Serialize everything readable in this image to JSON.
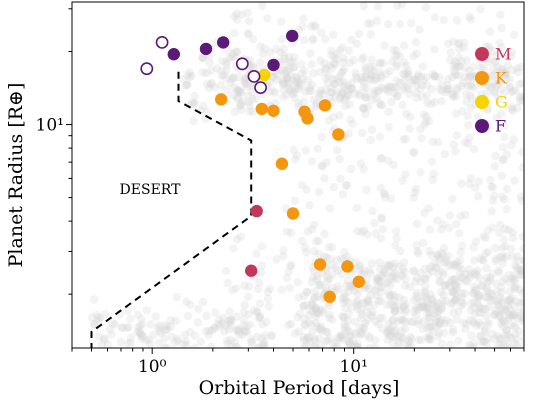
{
  "chart_data": {
    "type": "scatter",
    "xlabel": "Orbital Period [days]",
    "ylabel": "Planet Radius [R⊕]",
    "x_scale": "log",
    "y_scale": "log",
    "xlim": [
      0.4,
      70
    ],
    "ylim": [
      1.2,
      32
    ],
    "x_ticks": [
      {
        "value": 1,
        "label": "10⁰"
      },
      {
        "value": 10,
        "label": "10¹"
      }
    ],
    "y_ticks": [
      {
        "value": 10,
        "label": "10¹"
      }
    ],
    "grid": false,
    "legend": {
      "placement": "top-right",
      "entries": [
        {
          "label": "M",
          "color": "#c2385a"
        },
        {
          "label": "K",
          "color": "#f5960f"
        },
        {
          "label": "G",
          "color": "#f5d400"
        },
        {
          "label": "F",
          "color": "#5c1a78"
        }
      ]
    },
    "annotation": "DESERT",
    "background_color": "#d3d3d3",
    "desert_boundary": [
      [
        1.35,
        16.5
      ],
      [
        1.35,
        12.5
      ],
      [
        3.1,
        8.6
      ],
      [
        3.1,
        4.2
      ],
      [
        0.5,
        1.4
      ],
      [
        0.5,
        1.2
      ]
    ],
    "series": [
      {
        "name": "M",
        "color": "#c2385a",
        "filled": true,
        "points": [
          [
            3.3,
            4.4
          ],
          [
            3.1,
            2.5
          ]
        ]
      },
      {
        "name": "K",
        "color": "#f5960f",
        "filled": true,
        "points": [
          [
            2.2,
            12.7
          ],
          [
            3.5,
            11.6
          ],
          [
            4.0,
            11.4
          ],
          [
            5.7,
            11.3
          ],
          [
            5.9,
            10.6
          ],
          [
            7.2,
            12.0
          ],
          [
            8.4,
            9.1
          ],
          [
            4.4,
            6.9
          ],
          [
            5.0,
            4.3
          ],
          [
            6.8,
            2.65
          ],
          [
            9.3,
            2.6
          ],
          [
            10.6,
            2.25
          ],
          [
            7.6,
            1.95
          ]
        ]
      },
      {
        "name": "G",
        "color": "#f5d400",
        "filled": true,
        "points": [
          [
            3.6,
            16.0
          ]
        ]
      },
      {
        "name": "F",
        "color": "#5c1a78",
        "filled": true,
        "points": [
          [
            1.28,
            19.5
          ],
          [
            1.85,
            20.5
          ],
          [
            2.25,
            21.8
          ],
          [
            4.0,
            17.6
          ],
          [
            4.95,
            23.2
          ]
        ]
      },
      {
        "name": "F",
        "color": "#5c1a78",
        "filled": false,
        "points": [
          [
            0.94,
            17.0
          ],
          [
            1.12,
            21.8
          ],
          [
            2.8,
            17.8
          ],
          [
            3.2,
            15.8
          ],
          [
            3.45,
            14.2
          ]
        ]
      }
    ]
  }
}
